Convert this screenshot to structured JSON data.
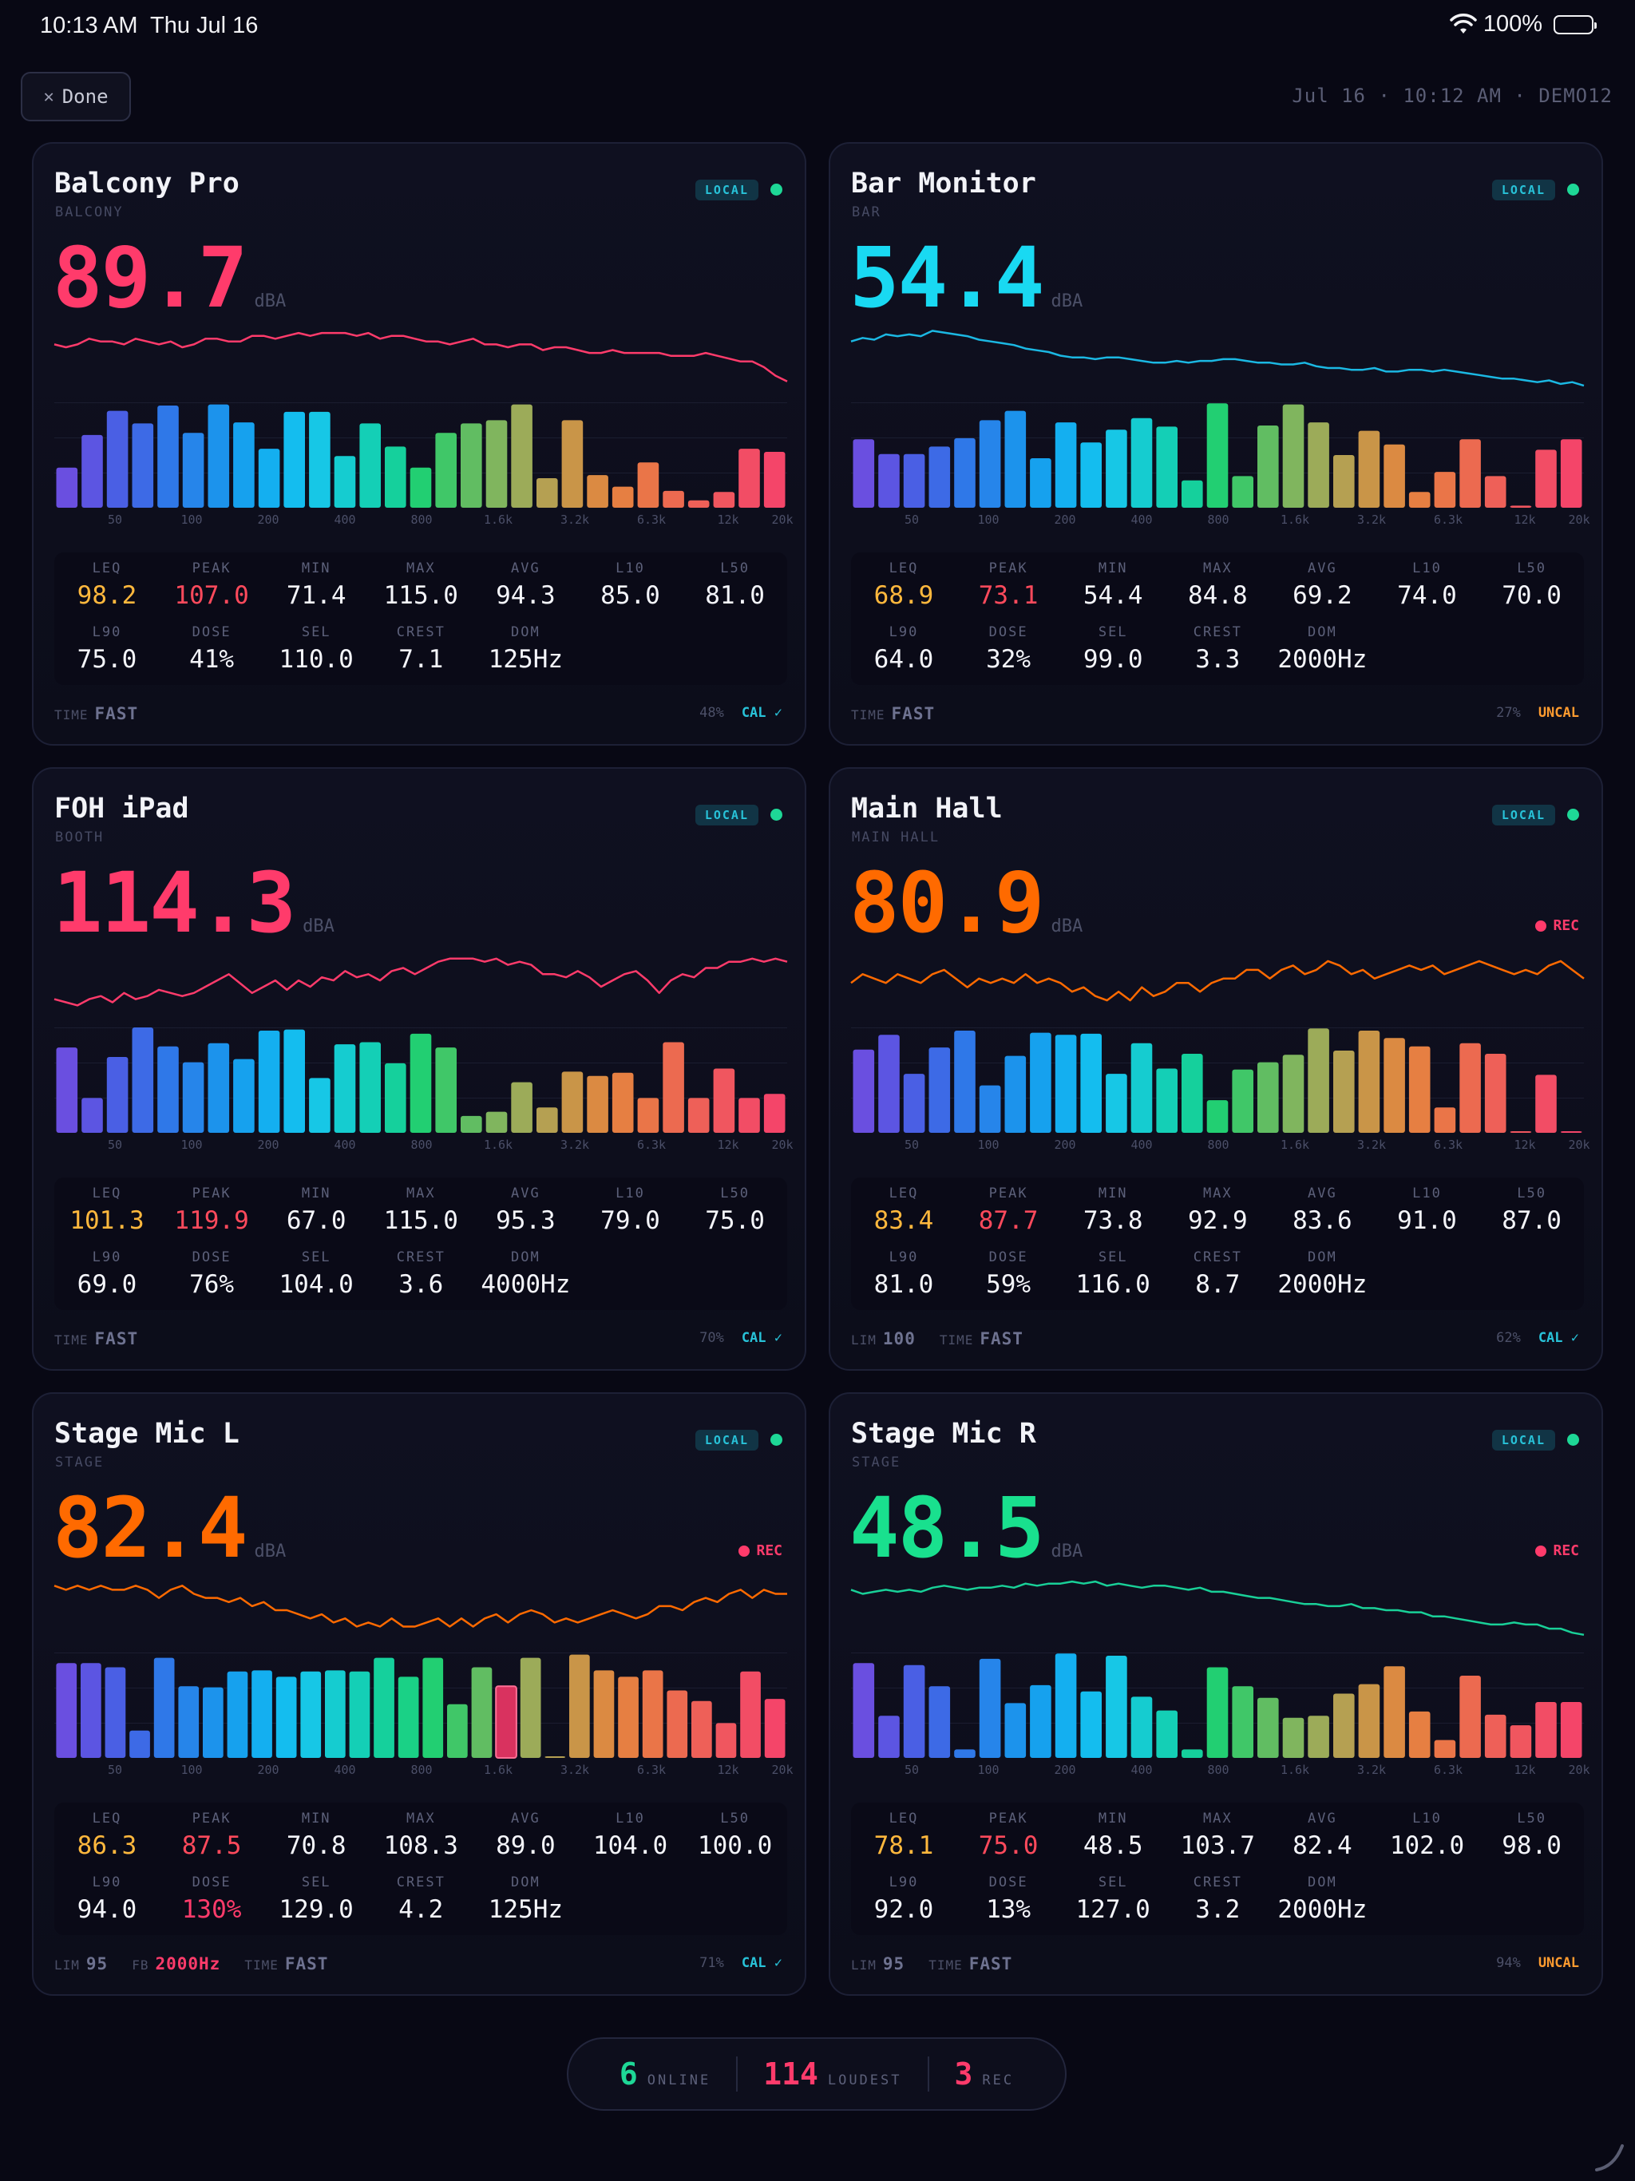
{
  "status_bar": {
    "time": "10:13 AM",
    "date": "Thu Jul 16",
    "battery": "100%"
  },
  "header": {
    "done_label": "Done",
    "meta": "Jul 16 · 10:12 AM · DEMO12"
  },
  "colors": {
    "accent_cyan": "#28c2d8",
    "rec_red": "#ff3b6b",
    "online_green": "#1ed796",
    "uncal_orange": "#ff9b2f"
  },
  "spectrum_labels": [
    "50",
    "100",
    "200",
    "400",
    "800",
    "1.6k",
    "3.2k",
    "6.3k",
    "12k",
    "20k"
  ],
  "metric_labels": [
    "LEQ",
    "PEAK",
    "MIN",
    "MAX",
    "AVG",
    "L10",
    "L50",
    "L90",
    "DOSE",
    "SEL",
    "CREST",
    "DOM"
  ],
  "cards": [
    {
      "name": "Balcony Pro",
      "location": "BALCONY",
      "badge": "LOCAL",
      "value": "89.7",
      "unit": "dBA",
      "value_color": "#ff3b6b",
      "rec": "",
      "trend_color": "#ff3b6b",
      "trend": [
        85,
        84,
        85,
        87,
        86,
        86,
        85,
        87,
        86,
        85,
        86,
        84,
        85,
        87,
        87,
        86,
        86,
        88,
        88,
        87,
        88,
        89,
        88,
        89,
        89,
        89,
        88,
        89,
        87,
        88,
        88,
        87,
        86,
        86,
        85,
        86,
        87,
        85,
        85,
        84,
        85,
        85,
        83,
        84,
        84,
        83,
        82,
        82,
        83,
        82,
        82,
        82,
        82,
        81,
        81,
        81,
        82,
        81,
        80,
        79,
        79,
        77,
        74,
        72
      ],
      "bars": [
        38,
        69,
        92,
        80,
        97,
        71,
        98,
        81,
        56,
        91,
        91,
        49,
        80,
        58,
        38,
        71,
        80,
        83,
        98,
        28,
        83,
        31,
        20,
        43,
        16,
        7,
        15,
        56,
        53
      ],
      "metrics": {
        "leq": "98.2",
        "peak": "107.0",
        "min": "71.4",
        "max": "115.0",
        "avg": "94.3",
        "l10": "85.0",
        "l50": "81.0",
        "l90": "75.0",
        "dose": "41%",
        "sel": "110.0",
        "crest": "7.1",
        "dom": "125Hz"
      },
      "leq_color": "#ffb83d",
      "peak_color": "#ff4a5c",
      "dose_color": "#f4f5fa",
      "footer": {
        "lim": "",
        "fb": "",
        "time_label": "TIME",
        "time": "FAST",
        "pct": "48%",
        "cal": "CAL ✓",
        "cal_color": "#28c2d8"
      }
    },
    {
      "name": "Bar Monitor",
      "location": "BAR",
      "badge": "LOCAL",
      "value": "54.4",
      "unit": "dBA",
      "value_color": "#19d9f2",
      "rec": "",
      "trend_color": "#1bb8e3",
      "trend": [
        88,
        90,
        89,
        92,
        91,
        92,
        91,
        94,
        93,
        92,
        91,
        89,
        88,
        87,
        86,
        84,
        83,
        82,
        80,
        79,
        79,
        78,
        79,
        79,
        78,
        77,
        76,
        76,
        77,
        76,
        77,
        77,
        78,
        78,
        77,
        76,
        76,
        75,
        75,
        76,
        74,
        73,
        73,
        72,
        72,
        73,
        71,
        71,
        72,
        72,
        71,
        72,
        71,
        70,
        69,
        68,
        67,
        67,
        66,
        65,
        66,
        64,
        65,
        63
      ],
      "bars": [
        65,
        51,
        51,
        58,
        66,
        83,
        92,
        47,
        81,
        62,
        74,
        85,
        77,
        26,
        99,
        30,
        78,
        98,
        81,
        50,
        73,
        60,
        15,
        34,
        65,
        30,
        2,
        55,
        65
      ],
      "metrics": {
        "leq": "68.9",
        "peak": "73.1",
        "min": "54.4",
        "max": "84.8",
        "avg": "69.2",
        "l10": "74.0",
        "l50": "70.0",
        "l90": "64.0",
        "dose": "32%",
        "sel": "99.0",
        "crest": "3.3",
        "dom": "2000Hz"
      },
      "leq_color": "#ffb83d",
      "peak_color": "#ff4a5c",
      "dose_color": "#f4f5fa",
      "footer": {
        "lim": "",
        "fb": "",
        "time_label": "TIME",
        "time": "FAST",
        "pct": "27%",
        "cal": "UNCAL",
        "cal_color": "#ff9b2f"
      }
    },
    {
      "name": "FOH iPad",
      "location": "BOOTH",
      "badge": "LOCAL",
      "value": "114.3",
      "unit": "dBA",
      "value_color": "#ff3b6b",
      "rec": "",
      "trend_color": "#ff3b6b",
      "trend": [
        106,
        105,
        104,
        106,
        107,
        105,
        108,
        106,
        107,
        109,
        108,
        107,
        108,
        110,
        112,
        114,
        111,
        108,
        110,
        112,
        109,
        112,
        110,
        113,
        112,
        115,
        113,
        114,
        112,
        115,
        116,
        114,
        116,
        118,
        119,
        119,
        119,
        118,
        119,
        117,
        118,
        117,
        114,
        114,
        113,
        115,
        113,
        110,
        112,
        114,
        115,
        112,
        108,
        112,
        114,
        113,
        116,
        116,
        118,
        118,
        119,
        118,
        119,
        118
      ],
      "bars": [
        81,
        33,
        72,
        100,
        82,
        67,
        85,
        70,
        97,
        98,
        52,
        84,
        86,
        66,
        94,
        81,
        16,
        20,
        48,
        24,
        58,
        54,
        57,
        33,
        86,
        33,
        61,
        33,
        37
      ],
      "metrics": {
        "leq": "101.3",
        "peak": "119.9",
        "min": "67.0",
        "max": "115.0",
        "avg": "95.3",
        "l10": "79.0",
        "l50": "75.0",
        "l90": "69.0",
        "dose": "76%",
        "sel": "104.0",
        "crest": "3.6",
        "dom": "4000Hz"
      },
      "leq_color": "#ffb83d",
      "peak_color": "#ff4a5c",
      "dose_color": "#f4f5fa",
      "footer": {
        "lim": "",
        "fb": "",
        "time_label": "TIME",
        "time": "FAST",
        "pct": "70%",
        "cal": "CAL ✓",
        "cal_color": "#28c2d8"
      }
    },
    {
      "name": "Main Hall",
      "location": "MAIN HALL",
      "badge": "LOCAL",
      "value": "80.9",
      "unit": "dBA",
      "value_color": "#ff6a00",
      "rec": "REC",
      "trend_color": "#ff6a00",
      "trend": [
        76,
        78,
        77,
        76,
        78,
        77,
        76,
        78,
        79,
        77,
        75,
        77,
        76,
        77,
        76,
        78,
        76,
        77,
        76,
        74,
        75,
        73,
        72,
        74,
        72,
        75,
        73,
        74,
        76,
        76,
        74,
        76,
        77,
        77,
        79,
        79,
        77,
        79,
        80,
        78,
        79,
        81,
        80,
        78,
        79,
        77,
        78,
        79,
        80,
        79,
        80,
        78,
        79,
        80,
        81,
        80,
        79,
        78,
        79,
        78,
        80,
        81,
        79,
        77
      ],
      "bars": [
        79,
        93,
        56,
        81,
        97,
        45,
        73,
        95,
        93,
        94,
        56,
        85,
        61,
        75,
        31,
        60,
        67,
        74,
        99,
        78,
        97,
        90,
        82,
        24,
        85,
        75,
        0,
        55,
        0
      ],
      "metrics": {
        "leq": "83.4",
        "peak": "87.7",
        "min": "73.8",
        "max": "92.9",
        "avg": "83.6",
        "l10": "91.0",
        "l50": "87.0",
        "l90": "81.0",
        "dose": "59%",
        "sel": "116.0",
        "crest": "8.7",
        "dom": "2000Hz"
      },
      "leq_color": "#ffb83d",
      "peak_color": "#ff4a5c",
      "dose_color": "#f4f5fa",
      "footer": {
        "lim_label": "LIM",
        "lim": "100",
        "fb": "",
        "time_label": "TIME",
        "time": "FAST",
        "pct": "62%",
        "cal": "CAL ✓",
        "cal_color": "#28c2d8"
      }
    },
    {
      "name": "Stage Mic L",
      "location": "STAGE",
      "badge": "LOCAL",
      "value": "82.4",
      "unit": "dBA",
      "value_color": "#ff6a00",
      "rec": "REC",
      "trend_color": "#ff6a00",
      "trend": [
        87,
        86,
        87,
        86,
        87,
        86,
        86,
        87,
        86,
        84,
        86,
        87,
        85,
        84,
        84,
        83,
        84,
        82,
        83,
        81,
        81,
        80,
        79,
        80,
        78,
        79,
        77,
        78,
        77,
        79,
        77,
        77,
        78,
        79,
        77,
        79,
        77,
        79,
        80,
        78,
        80,
        81,
        80,
        78,
        79,
        78,
        79,
        80,
        81,
        80,
        79,
        80,
        82,
        82,
        81,
        83,
        84,
        83,
        85,
        86,
        84,
        86,
        85,
        85
      ],
      "bars": [
        90,
        90,
        86,
        26,
        95,
        68,
        67,
        82,
        83,
        77,
        82,
        83,
        82,
        95,
        77,
        95,
        51,
        86,
        68,
        95,
        0,
        98,
        83,
        77,
        83,
        64,
        54,
        33,
        82,
        56
      ],
      "metrics": {
        "leq": "86.3",
        "peak": "87.5",
        "min": "70.8",
        "max": "108.3",
        "avg": "89.0",
        "l10": "104.0",
        "l50": "100.0",
        "l90": "94.0",
        "dose": "130%",
        "sel": "129.0",
        "crest": "4.2",
        "dom": "125Hz"
      },
      "leq_color": "#ffb83d",
      "peak_color": "#ff4a5c",
      "dose_color": "#ff3b6b",
      "footer": {
        "lim_label": "LIM",
        "lim": "95",
        "fb_label": "FB",
        "fb": "2000Hz",
        "time_label": "TIME",
        "time": "FAST",
        "pct": "71%",
        "cal": "CAL ✓",
        "cal_color": "#28c2d8"
      }
    },
    {
      "name": "Stage Mic R",
      "location": "STAGE",
      "badge": "LOCAL",
      "value": "48.5",
      "unit": "dBA",
      "value_color": "#19e08e",
      "rec": "REC",
      "trend_color": "#19d098",
      "trend": [
        83,
        81,
        82,
        83,
        82,
        83,
        82,
        84,
        85,
        84,
        83,
        84,
        84,
        85,
        84,
        86,
        85,
        86,
        86,
        87,
        86,
        87,
        85,
        86,
        85,
        84,
        85,
        85,
        84,
        83,
        84,
        82,
        82,
        81,
        80,
        79,
        79,
        78,
        77,
        76,
        76,
        75,
        75,
        76,
        74,
        74,
        73,
        73,
        72,
        72,
        70,
        70,
        69,
        68,
        67,
        66,
        66,
        67,
        66,
        66,
        64,
        64,
        62,
        61
      ],
      "bars": [
        90,
        40,
        88,
        68,
        8,
        94,
        52,
        69,
        99,
        63,
        97,
        58,
        45,
        8,
        86,
        68,
        57,
        38,
        40,
        61,
        70,
        87,
        44,
        17,
        78,
        41,
        31,
        53,
        53
      ],
      "metrics": {
        "leq": "78.1",
        "peak": "75.0",
        "min": "48.5",
        "max": "103.7",
        "avg": "82.4",
        "l10": "102.0",
        "l50": "98.0",
        "l90": "92.0",
        "dose": "13%",
        "sel": "127.0",
        "crest": "3.2",
        "dom": "2000Hz"
      },
      "leq_color": "#ffb83d",
      "peak_color": "#ff4a5c",
      "dose_color": "#f4f5fa",
      "footer": {
        "lim_label": "LIM",
        "lim": "95",
        "fb": "",
        "time_label": "TIME",
        "time": "FAST",
        "pct": "94%",
        "cal": "UNCAL",
        "cal_color": "#ff9b2f"
      }
    }
  ],
  "summary": {
    "online_count": "6",
    "online_label": "ONLINE",
    "loudest_value": "114",
    "loudest_label": "LOUDEST",
    "rec_count": "3",
    "rec_label": "REC"
  }
}
